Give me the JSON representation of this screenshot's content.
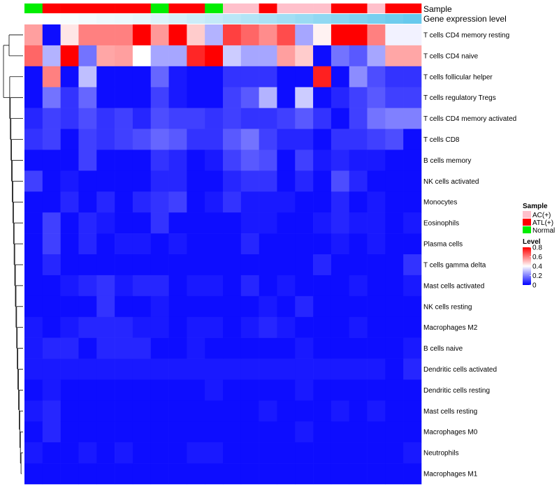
{
  "chart_data": {
    "type": "heatmap",
    "annotation_tracks": [
      {
        "name": "Sample",
        "label": "Sample"
      },
      {
        "name": "Gene expression level",
        "label": "Gene expression level"
      }
    ],
    "sample_codes": [
      "N",
      "A",
      "A",
      "A",
      "A",
      "A",
      "A",
      "N",
      "A",
      "A",
      "N",
      "C",
      "C",
      "A",
      "C",
      "C",
      "C",
      "A",
      "A",
      "C",
      "A",
      "A"
    ],
    "sample_categories": {
      "C": {
        "label": "AC(+)",
        "color": "#ffc0cb"
      },
      "A": {
        "label": "ATL(+)",
        "color": "#ff0000"
      },
      "N": {
        "label": "Normal",
        "color": "#00ee00"
      }
    },
    "gene_expression_level": [
      0.0,
      0.02,
      0.04,
      0.07,
      0.1,
      0.12,
      0.15,
      0.2,
      0.25,
      0.3,
      0.35,
      0.4,
      0.45,
      0.5,
      0.55,
      0.6,
      0.65,
      0.7,
      0.75,
      0.8,
      0.85,
      0.9
    ],
    "gene_expression_colors": {
      "low": "#ffffff",
      "high": "#56c3eb"
    },
    "rows": [
      "T cells CD4 memory resting",
      "T cells CD4 naive",
      "T cells follicular helper",
      "T cells regulatory  Tregs",
      "T cells CD4 memory activated",
      "T cells CD8",
      "B cells memory",
      "NK cells activated",
      "Monocytes",
      "Eosinophils",
      "Plasma cells",
      "T cells gamma delta",
      "Mast cells activated",
      "NK cells resting",
      "Macrophages M2",
      "B cells naive",
      "Dendritic cells activated",
      "Dendritic cells resting",
      "Mast cells resting",
      "Macrophages M0",
      "Neutrophils",
      "Macrophages M1"
    ],
    "values": [
      [
        0.55,
        0.02,
        0.44,
        0.6,
        0.6,
        0.6,
        0.8,
        0.56,
        0.8,
        0.48,
        0.28,
        0.7,
        0.64,
        0.58,
        0.68,
        0.26,
        0.42,
        0.8,
        0.8,
        0.6,
        0.38,
        0.38
      ],
      [
        0.64,
        0.28,
        0.8,
        0.18,
        0.54,
        0.55,
        0.4,
        0.26,
        0.26,
        0.74,
        0.8,
        0.32,
        0.26,
        0.26,
        0.55,
        0.48,
        0.02,
        0.18,
        0.14,
        0.26,
        0.54,
        0.54
      ],
      [
        0.02,
        0.6,
        0.02,
        0.3,
        0.02,
        0.02,
        0.02,
        0.16,
        0.04,
        0.02,
        0.02,
        0.08,
        0.08,
        0.08,
        0.02,
        0.02,
        0.75,
        0.02,
        0.22,
        0.12,
        0.08,
        0.08
      ],
      [
        0.02,
        0.18,
        0.08,
        0.16,
        0.02,
        0.02,
        0.02,
        0.1,
        0.04,
        0.02,
        0.02,
        0.1,
        0.14,
        0.28,
        0.02,
        0.32,
        0.02,
        0.06,
        0.1,
        0.14,
        0.1,
        0.1
      ],
      [
        0.06,
        0.1,
        0.08,
        0.12,
        0.08,
        0.1,
        0.06,
        0.12,
        0.1,
        0.1,
        0.08,
        0.1,
        0.08,
        0.08,
        0.1,
        0.14,
        0.08,
        0.02,
        0.1,
        0.18,
        0.2,
        0.2
      ],
      [
        0.08,
        0.1,
        0.02,
        0.1,
        0.08,
        0.1,
        0.12,
        0.16,
        0.14,
        0.08,
        0.08,
        0.14,
        0.18,
        0.1,
        0.06,
        0.06,
        0.02,
        0.08,
        0.08,
        0.1,
        0.12,
        0.02
      ],
      [
        0.02,
        0.02,
        0.02,
        0.1,
        0.02,
        0.02,
        0.02,
        0.08,
        0.06,
        0.02,
        0.04,
        0.1,
        0.14,
        0.12,
        0.02,
        0.1,
        0.04,
        0.06,
        0.04,
        0.04,
        0.02,
        0.02
      ],
      [
        0.1,
        0.02,
        0.04,
        0.02,
        0.02,
        0.02,
        0.02,
        0.06,
        0.06,
        0.02,
        0.02,
        0.06,
        0.08,
        0.08,
        0.02,
        0.06,
        0.02,
        0.12,
        0.06,
        0.02,
        0.02,
        0.02
      ],
      [
        0.02,
        0.02,
        0.06,
        0.02,
        0.06,
        0.02,
        0.06,
        0.08,
        0.1,
        0.02,
        0.04,
        0.08,
        0.04,
        0.04,
        0.04,
        0.02,
        0.02,
        0.06,
        0.02,
        0.04,
        0.02,
        0.02
      ],
      [
        0.02,
        0.1,
        0.02,
        0.06,
        0.04,
        0.02,
        0.02,
        0.08,
        0.02,
        0.02,
        0.02,
        0.02,
        0.04,
        0.04,
        0.02,
        0.02,
        0.04,
        0.06,
        0.04,
        0.04,
        0.02,
        0.04
      ],
      [
        0.02,
        0.1,
        0.02,
        0.06,
        0.02,
        0.04,
        0.04,
        0.02,
        0.04,
        0.02,
        0.02,
        0.02,
        0.06,
        0.02,
        0.02,
        0.02,
        0.02,
        0.04,
        0.02,
        0.04,
        0.02,
        0.02
      ],
      [
        0.02,
        0.06,
        0.02,
        0.02,
        0.02,
        0.02,
        0.02,
        0.02,
        0.02,
        0.02,
        0.02,
        0.02,
        0.02,
        0.02,
        0.02,
        0.02,
        0.06,
        0.02,
        0.02,
        0.02,
        0.02,
        0.08
      ],
      [
        0.02,
        0.02,
        0.04,
        0.06,
        0.08,
        0.04,
        0.06,
        0.06,
        0.02,
        0.04,
        0.04,
        0.02,
        0.06,
        0.02,
        0.04,
        0.02,
        0.02,
        0.02,
        0.04,
        0.02,
        0.02,
        0.04
      ],
      [
        0.02,
        0.02,
        0.02,
        0.02,
        0.08,
        0.02,
        0.02,
        0.04,
        0.02,
        0.02,
        0.02,
        0.02,
        0.02,
        0.04,
        0.02,
        0.06,
        0.02,
        0.02,
        0.02,
        0.02,
        0.02,
        0.02
      ],
      [
        0.04,
        0.02,
        0.04,
        0.06,
        0.06,
        0.06,
        0.04,
        0.04,
        0.02,
        0.04,
        0.04,
        0.02,
        0.04,
        0.06,
        0.04,
        0.02,
        0.02,
        0.02,
        0.04,
        0.02,
        0.02,
        0.02
      ],
      [
        0.04,
        0.06,
        0.06,
        0.02,
        0.06,
        0.06,
        0.06,
        0.02,
        0.02,
        0.04,
        0.02,
        0.02,
        0.02,
        0.02,
        0.02,
        0.04,
        0.02,
        0.02,
        0.02,
        0.02,
        0.02,
        0.04
      ],
      [
        0.04,
        0.04,
        0.04,
        0.04,
        0.04,
        0.04,
        0.04,
        0.04,
        0.04,
        0.04,
        0.04,
        0.04,
        0.04,
        0.04,
        0.04,
        0.04,
        0.04,
        0.04,
        0.04,
        0.04,
        0.02,
        0.06
      ],
      [
        0.02,
        0.04,
        0.02,
        0.02,
        0.02,
        0.02,
        0.02,
        0.02,
        0.02,
        0.02,
        0.04,
        0.02,
        0.02,
        0.02,
        0.02,
        0.04,
        0.02,
        0.02,
        0.02,
        0.02,
        0.02,
        0.02
      ],
      [
        0.04,
        0.06,
        0.02,
        0.02,
        0.02,
        0.02,
        0.02,
        0.02,
        0.02,
        0.02,
        0.02,
        0.02,
        0.02,
        0.04,
        0.02,
        0.02,
        0.02,
        0.04,
        0.02,
        0.04,
        0.02,
        0.02
      ],
      [
        0.02,
        0.06,
        0.02,
        0.02,
        0.02,
        0.02,
        0.02,
        0.02,
        0.02,
        0.02,
        0.02,
        0.02,
        0.02,
        0.02,
        0.02,
        0.04,
        0.02,
        0.02,
        0.02,
        0.02,
        0.02,
        0.02
      ],
      [
        0.04,
        0.02,
        0.02,
        0.04,
        0.02,
        0.04,
        0.02,
        0.02,
        0.02,
        0.04,
        0.04,
        0.02,
        0.02,
        0.02,
        0.02,
        0.02,
        0.02,
        0.02,
        0.02,
        0.02,
        0.02,
        0.04
      ],
      [
        0.02,
        0.02,
        0.02,
        0.02,
        0.02,
        0.02,
        0.02,
        0.02,
        0.02,
        0.02,
        0.02,
        0.02,
        0.02,
        0.02,
        0.02,
        0.02,
        0.02,
        0.02,
        0.02,
        0.02,
        0.02,
        0.02
      ]
    ],
    "dendrogram": "hierarchical row clustering (left)",
    "legend": {
      "sample_title": "Sample",
      "sample_items": [
        {
          "label": "AC(+)",
          "color": "#ffc0cb"
        },
        {
          "label": "ATL(+)",
          "color": "#ff0000"
        },
        {
          "label": "Normal",
          "color": "#00ee00"
        }
      ],
      "level_title": "Level",
      "level_ticks": [
        "0.8",
        "0.6",
        "0.4",
        "0.2",
        "0"
      ],
      "level_min": 0,
      "level_max": 0.8
    },
    "color_scale": {
      "low": "#0000ff",
      "mid": "#ffffff",
      "high": "#ff0000",
      "midpoint": 0.4
    }
  }
}
